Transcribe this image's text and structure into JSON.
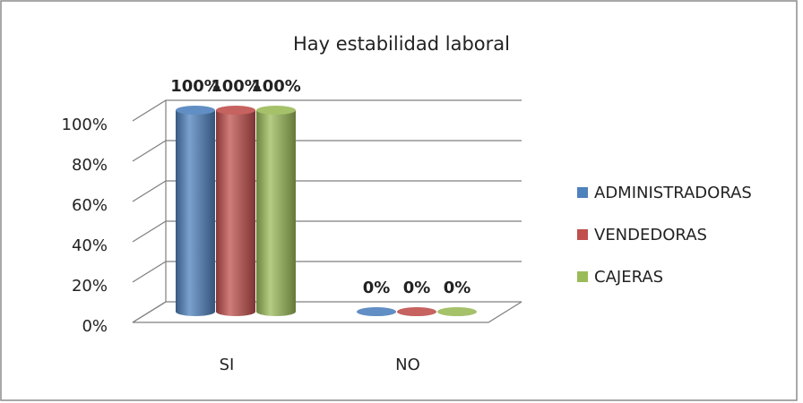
{
  "chart_data": {
    "type": "bar",
    "title": "Hay estabilidad laboral",
    "categories": [
      "SI",
      "NO"
    ],
    "series": [
      {
        "name": "ADMINISTRADORAS",
        "color": "#4f81bd",
        "values": [
          100,
          0
        ],
        "value_labels": [
          "100%",
          "0%"
        ]
      },
      {
        "name": "VENDEDORAS",
        "color": "#c0504d",
        "values": [
          100,
          0
        ],
        "value_labels": [
          "100%",
          "0%"
        ]
      },
      {
        "name": "CAJERAS",
        "color": "#9bbb59",
        "values": [
          100,
          0
        ],
        "value_labels": [
          "100%",
          "0%"
        ]
      }
    ],
    "ylim": [
      0,
      100
    ],
    "yticks": [
      {
        "value": 0,
        "label": "0%"
      },
      {
        "value": 20,
        "label": "20%"
      },
      {
        "value": 40,
        "label": "40%"
      },
      {
        "value": 60,
        "label": "60%"
      },
      {
        "value": 80,
        "label": "80%"
      },
      {
        "value": 100,
        "label": "100%"
      }
    ],
    "grid": true,
    "legend": "right"
  }
}
